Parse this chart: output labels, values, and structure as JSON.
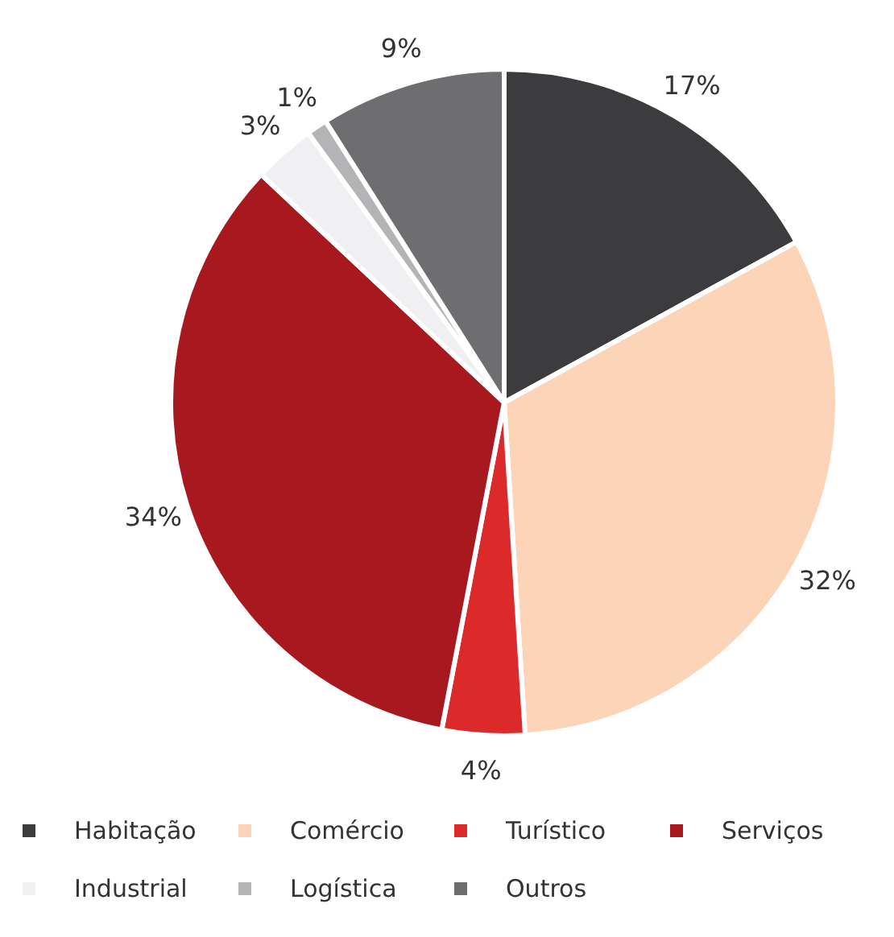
{
  "chart_data": {
    "type": "pie",
    "categories": [
      "Habitação",
      "Comércio",
      "Turístico",
      "Serviços",
      "Industrial",
      "Logística",
      "Outros"
    ],
    "values": [
      17,
      32,
      4,
      34,
      3,
      1,
      9
    ],
    "value_labels": [
      "17%",
      "32%",
      "4%",
      "34%",
      "3%",
      "1%",
      "9%"
    ],
    "colors": [
      "#3c3c3e",
      "#fcd4b8",
      "#dc2a2a",
      "#a8191f",
      "#f0f0f2",
      "#b4b4b6",
      "#6e6e70"
    ],
    "legend": "bottom"
  }
}
